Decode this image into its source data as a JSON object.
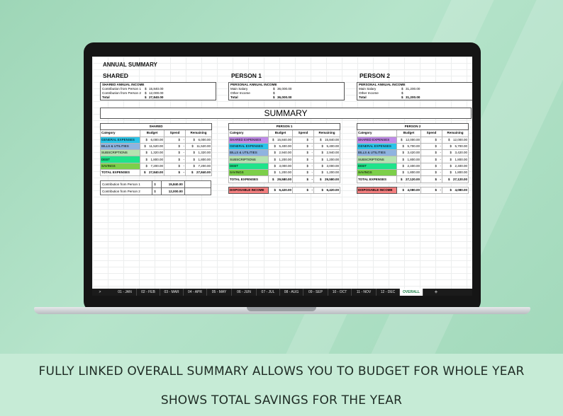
{
  "sheet": {
    "title": "ANNUAL SUMMARY",
    "sections": [
      "SHARED",
      "PERSON 1",
      "PERSON 2"
    ],
    "incomes": [
      {
        "title": "SHARED ANNUAL INCOME",
        "rows": [
          {
            "label": "Contribution from Person 1",
            "cur": "$",
            "amount": "15,840.00"
          },
          {
            "label": "Contribution from Person 2",
            "cur": "$",
            "amount": "12,000.00"
          },
          {
            "label": "Total",
            "cur": "$",
            "amount": "27,840.00"
          }
        ]
      },
      {
        "title": "PERSONAL ANNUAL INCOME",
        "rows": [
          {
            "label": "Main Salary",
            "cur": "$",
            "amount": "36,000.00"
          },
          {
            "label": "Other Income",
            "cur": "$",
            "amount": ""
          },
          {
            "label": "Total",
            "cur": "$",
            "amount": "36,000.00"
          }
        ]
      },
      {
        "title": "PERSONAL ANNUAL INCOME",
        "rows": [
          {
            "label": "Main Salary",
            "cur": "$",
            "amount": "31,200.00"
          },
          {
            "label": "Other Income",
            "cur": "$",
            "amount": ""
          },
          {
            "label": "Total",
            "cur": "$",
            "amount": "31,200.00"
          }
        ]
      }
    ],
    "summary_title": "SUMMARY",
    "columns": [
      "Category",
      "Budget",
      "Spend",
      "Remaining"
    ],
    "dollar": "$",
    "dash": "-",
    "tables": [
      {
        "header": "SHARED",
        "rows": [
          {
            "category": "GENERAL EXPENSES",
            "color": "#2ac4e8",
            "budget": "6,000.00",
            "spend": "-",
            "remaining": "6,000.00"
          },
          {
            "category": "BILLS & UTILITIES",
            "color": "#8fb3e0",
            "budget": "11,520.00",
            "spend": "-",
            "remaining": "11,520.00"
          },
          {
            "category": "SUBSCRIPTIONS",
            "color": "#b5e3b0",
            "budget": "1,320.00",
            "spend": "-",
            "remaining": "1,320.00"
          },
          {
            "category": "DEBT",
            "color": "#1fe38a",
            "budget": "1,800.00",
            "spend": "-",
            "remaining": "1,800.00"
          },
          {
            "category": "SAVINGS",
            "color": "#7ccf4a",
            "budget": "7,200.00",
            "spend": "-",
            "remaining": "7,200.00"
          }
        ],
        "total": {
          "label": "TOTAL EXPENSES",
          "budget": "27,840.00",
          "spend": "-",
          "remaining": "27,840.00"
        }
      },
      {
        "header": "PERSON 1",
        "rows": [
          {
            "category": "SHARED EXPENSES",
            "color": "#c08ae8",
            "budget": "15,840.00",
            "spend": "-",
            "remaining": "15,840.00"
          },
          {
            "category": "GENERAL EXPENSES",
            "color": "#2ac4e8",
            "budget": "5,400.00",
            "spend": "-",
            "remaining": "5,400.00"
          },
          {
            "category": "BILLS & UTILITIES",
            "color": "#8fb3e0",
            "budget": "2,940.00",
            "spend": "-",
            "remaining": "2,940.00"
          },
          {
            "category": "SUBSCRIPTIONS",
            "color": "#b5e3b0",
            "budget": "1,200.00",
            "spend": "-",
            "remaining": "1,200.00"
          },
          {
            "category": "DEBT",
            "color": "#1fe38a",
            "budget": "3,000.00",
            "spend": "-",
            "remaining": "3,000.00"
          },
          {
            "category": "SAVINGS",
            "color": "#7ccf4a",
            "budget": "1,200.00",
            "spend": "-",
            "remaining": "1,200.00"
          }
        ],
        "total": {
          "label": "TOTAL EXPENSES",
          "budget": "29,580.00",
          "spend": "-",
          "remaining": "29,580.00"
        }
      },
      {
        "header": "PERSON 2",
        "rows": [
          {
            "category": "SHARED EXPENSES",
            "color": "#c08ae8",
            "budget": "12,000.00",
            "spend": "-",
            "remaining": "12,000.00"
          },
          {
            "category": "GENERAL EXPENSES",
            "color": "#2ac4e8",
            "budget": "5,700.00",
            "spend": "-",
            "remaining": "5,700.00"
          },
          {
            "category": "BILLS & UTILITIES",
            "color": "#8fb3e0",
            "budget": "3,420.00",
            "spend": "-",
            "remaining": "3,420.00"
          },
          {
            "category": "SUBSCRIPTIONS",
            "color": "#b5e3b0",
            "budget": "1,800.00",
            "spend": "-",
            "remaining": "1,800.00"
          },
          {
            "category": "DEBT",
            "color": "#1fe38a",
            "budget": "2,400.00",
            "spend": "-",
            "remaining": "2,400.00"
          },
          {
            "category": "SAVINGS",
            "color": "#7ccf4a",
            "budget": "1,800.00",
            "spend": "-",
            "remaining": "1,800.00"
          }
        ],
        "total": {
          "label": "TOTAL EXPENSES",
          "budget": "27,120.00",
          "spend": "-",
          "remaining": "27,120.00"
        }
      }
    ],
    "contributions": [
      {
        "label": "Contribution from Person 1",
        "cur": "$",
        "amount": "15,840.00"
      },
      {
        "label": "Contribution from Person 2",
        "cur": "$",
        "amount": "12,000.00"
      }
    ],
    "disposable": [
      {
        "label": "DISPOSABLE INCOME",
        "color": "#f47f7f",
        "amount": "6,420.00",
        "spend": "-",
        "remaining": "6,420.00"
      },
      {
        "label": "DISPOSABLE INCOME",
        "color": "#f47f7f",
        "amount": "4,080.00",
        "spend": "-",
        "remaining": "4,080.00"
      }
    ]
  },
  "tabs": {
    "nav_glyph": ">",
    "items": [
      "01 - JAN",
      "02 - FEB",
      "03 - MAR",
      "04 - APR",
      "05 - MAY",
      "06 - JUN",
      "07 - JUL",
      "08 - AUG",
      "09 - SEP",
      "10 - OCT",
      "11 - NOV",
      "12 - DEC",
      "OVERALL"
    ],
    "active": "OVERALL",
    "add": "+"
  },
  "captions": {
    "line1": "FULLY LINKED OVERALL SUMMARY ALLOWS YOU TO BUDGET FOR WHOLE YEAR",
    "line2": "SHOWS TOTAL SAVINGS FOR THE YEAR"
  }
}
